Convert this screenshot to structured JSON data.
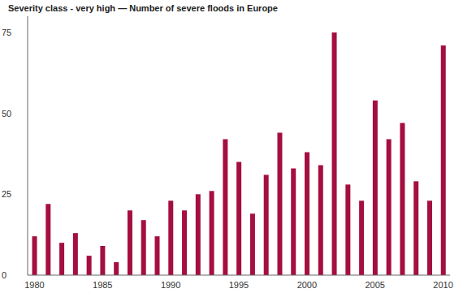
{
  "chart_data": {
    "type": "bar",
    "title": "Severity class - very high — Number of severe floods in Europe",
    "categories": [
      "1980",
      null,
      null,
      null,
      null,
      "1985",
      null,
      null,
      null,
      null,
      "1990",
      null,
      null,
      null,
      null,
      "1995",
      null,
      null,
      null,
      null,
      "2000",
      null,
      null,
      null,
      null,
      "2005",
      null,
      null,
      null,
      null,
      "2010"
    ],
    "values": [
      12,
      22,
      10,
      13,
      6,
      9,
      4,
      20,
      17,
      12,
      23,
      20,
      25,
      26,
      42,
      35,
      19,
      31,
      44,
      33,
      38,
      34,
      75,
      28,
      23,
      54,
      42,
      47,
      29,
      23,
      71
    ],
    "color": "#a50f3f",
    "ylim": [
      0,
      80
    ],
    "yticks": [
      0,
      25,
      50,
      75
    ],
    "grid": false
  }
}
